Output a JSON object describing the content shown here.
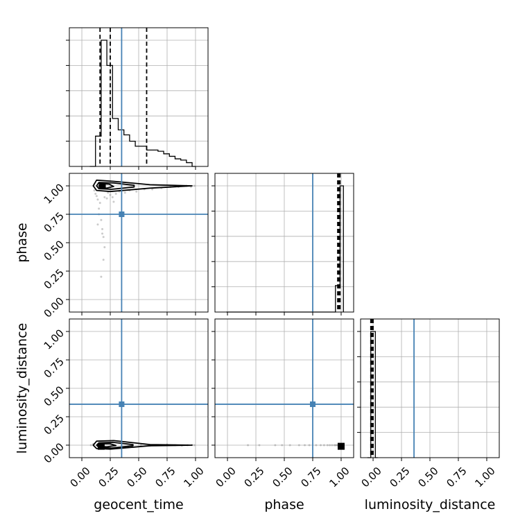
{
  "chart_data": {
    "type": "corner",
    "parameters": [
      "geocent_time",
      "phase",
      "luminosity_distance"
    ],
    "axis_labels": {
      "x": [
        "geocent_time",
        "phase",
        "luminosity_distance"
      ],
      "y": [
        "phase",
        "luminosity_distance"
      ]
    },
    "ticks": {
      "x": [
        "0.00",
        "0.25",
        "0.50",
        "0.75",
        "1.00"
      ],
      "y": [
        "0.00",
        "0.25",
        "0.50",
        "0.75",
        "1.00"
      ]
    },
    "grid": true,
    "colors": {
      "truth": "#4682b4",
      "hist": "#000000",
      "quantile": "#000000",
      "sample": "#8c8c8c"
    },
    "truths": {
      "geocent_time": 0.35,
      "phase": 0.75,
      "luminosity_distance": 0.36
    },
    "panels": [
      {
        "kind": "hist1d",
        "row": 0,
        "col": 0,
        "param": "geocent_time",
        "xlim": [
          -0.11,
          1.11
        ],
        "bin_edges": [
          0.07,
          0.12,
          0.17,
          0.22,
          0.27,
          0.32,
          0.37,
          0.42,
          0.47,
          0.52,
          0.57,
          0.62,
          0.67,
          0.72,
          0.77,
          0.82,
          0.87,
          0.92,
          0.97,
          1.0
        ],
        "counts": [
          0.0,
          0.24,
          1.0,
          0.8,
          0.38,
          0.29,
          0.25,
          0.2,
          0.16,
          0.16,
          0.13,
          0.13,
          0.12,
          0.1,
          0.08,
          0.06,
          0.05,
          0.03,
          0.0
        ],
        "quantiles": [
          0.16,
          0.25,
          0.57
        ],
        "truth": 0.35
      },
      {
        "kind": "hist1d",
        "row": 1,
        "col": 1,
        "param": "phase",
        "xlim": [
          -0.11,
          1.11
        ],
        "bin_edges": [
          -0.01,
          0.95,
          0.97,
          0.99,
          1.02
        ],
        "counts": [
          0.0,
          0.21,
          0.21,
          1.0
        ],
        "quantiles": [
          0.97,
          0.98,
          0.99
        ],
        "truth": 0.75
      },
      {
        "kind": "hist1d",
        "row": 2,
        "col": 2,
        "param": "luminosity_distance",
        "xlim": [
          -0.11,
          1.11
        ],
        "bin_edges": [
          -0.05,
          -0.02,
          0.02,
          0.04
        ],
        "counts": [
          0.0,
          1.0,
          0.0
        ],
        "quantiles": [
          -0.02,
          -0.01,
          0.0
        ],
        "truth": 0.36
      },
      {
        "kind": "hist2d",
        "row": 1,
        "col": 0,
        "xparam": "geocent_time",
        "yparam": "phase",
        "xlim": [
          -0.11,
          1.11
        ],
        "ylim": [
          -0.11,
          1.11
        ],
        "truth": [
          0.35,
          0.75
        ],
        "mode": [
          0.18,
          1.0
        ],
        "contours": [
          [
            [
              0.1,
              1.0
            ],
            [
              0.13,
              0.96
            ],
            [
              0.25,
              0.95
            ],
            [
              0.6,
              0.98
            ],
            [
              0.97,
              1.0
            ],
            [
              0.6,
              1.01
            ],
            [
              0.28,
              1.04
            ],
            [
              0.13,
              1.05
            ]
          ],
          [
            [
              0.13,
              1.0
            ],
            [
              0.15,
              0.975
            ],
            [
              0.26,
              0.97
            ],
            [
              0.46,
              0.99
            ],
            [
              0.46,
              1.005
            ],
            [
              0.28,
              1.025
            ],
            [
              0.15,
              1.03
            ]
          ],
          [
            [
              0.15,
              1.0
            ],
            [
              0.16,
              0.985
            ],
            [
              0.22,
              0.98
            ],
            [
              0.28,
              0.995
            ],
            [
              0.24,
              1.015
            ],
            [
              0.17,
              1.02
            ]
          ]
        ],
        "samples": [
          [
            0.12,
            0.93
          ],
          [
            0.14,
            0.88
          ],
          [
            0.16,
            0.85
          ],
          [
            0.15,
            0.8
          ],
          [
            0.17,
            0.7
          ],
          [
            0.18,
            0.62
          ],
          [
            0.19,
            0.55
          ],
          [
            0.2,
            0.46
          ],
          [
            0.19,
            0.35
          ],
          [
            0.17,
            0.2
          ],
          [
            0.13,
            0.91
          ],
          [
            0.22,
            0.89
          ],
          [
            0.25,
            0.92
          ],
          [
            0.28,
            0.86
          ],
          [
            0.11,
            0.96
          ],
          [
            0.3,
            0.93
          ],
          [
            0.33,
            0.95
          ],
          [
            0.38,
            0.94
          ],
          [
            0.42,
            0.96
          ],
          [
            0.48,
            0.95
          ],
          [
            0.55,
            0.97
          ],
          [
            0.62,
            0.97
          ],
          [
            0.7,
            0.98
          ],
          [
            0.78,
            0.99
          ],
          [
            0.85,
            0.99
          ],
          [
            0.92,
            1.0
          ],
          [
            0.96,
            0.99
          ],
          [
            0.99,
            1.0
          ],
          [
            0.2,
            0.9
          ],
          [
            0.15,
            0.75
          ],
          [
            0.18,
            0.58
          ],
          [
            0.14,
            0.66
          ],
          [
            0.23,
            0.94
          ],
          [
            0.27,
            0.9
          ]
        ]
      },
      {
        "kind": "hist2d",
        "row": 2,
        "col": 0,
        "xparam": "geocent_time",
        "yparam": "luminosity_distance",
        "xlim": [
          -0.11,
          1.11
        ],
        "ylim": [
          -0.11,
          1.11
        ],
        "truth": [
          0.35,
          0.36
        ],
        "mode": [
          0.17,
          -0.01
        ],
        "contours": [
          [
            [
              0.1,
              0.0
            ],
            [
              0.13,
              -0.03
            ],
            [
              0.25,
              -0.035
            ],
            [
              0.6,
              -0.005
            ],
            [
              0.97,
              0.0
            ],
            [
              0.6,
              0.005
            ],
            [
              0.28,
              0.04
            ],
            [
              0.13,
              0.035
            ]
          ],
          [
            [
              0.13,
              0.0
            ],
            [
              0.15,
              -0.02
            ],
            [
              0.26,
              -0.025
            ],
            [
              0.45,
              -0.005
            ],
            [
              0.45,
              0.005
            ],
            [
              0.27,
              0.025
            ],
            [
              0.15,
              0.02
            ]
          ],
          [
            [
              0.15,
              0.0
            ],
            [
              0.16,
              -0.012
            ],
            [
              0.22,
              -0.015
            ],
            [
              0.3,
              -0.003
            ],
            [
              0.25,
              0.012
            ],
            [
              0.17,
              0.012
            ]
          ]
        ],
        "samples": [
          [
            0.08,
            0.0
          ],
          [
            0.1,
            0.01
          ],
          [
            0.52,
            0.0
          ],
          [
            0.6,
            -0.005
          ],
          [
            0.68,
            0.0
          ],
          [
            0.75,
            0.005
          ],
          [
            0.82,
            0.0
          ],
          [
            0.88,
            -0.003
          ],
          [
            0.93,
            0.0
          ],
          [
            0.97,
            0.002
          ],
          [
            0.99,
            0.0
          ]
        ]
      },
      {
        "kind": "hist2d",
        "row": 2,
        "col": 1,
        "xparam": "phase",
        "yparam": "luminosity_distance",
        "xlim": [
          -0.11,
          1.11
        ],
        "ylim": [
          -0.11,
          1.11
        ],
        "truth": [
          0.75,
          0.36
        ],
        "mode": [
          1.0,
          -0.01
        ],
        "contours": [],
        "samples": [
          [
            0.18,
            0.0
          ],
          [
            0.28,
            0.0
          ],
          [
            0.42,
            0.0
          ],
          [
            0.48,
            0.0
          ],
          [
            0.55,
            0.0
          ],
          [
            0.63,
            0.0
          ],
          [
            0.68,
            0.0
          ],
          [
            0.72,
            0.0
          ],
          [
            0.78,
            0.0
          ],
          [
            0.82,
            0.0
          ],
          [
            0.85,
            0.0
          ],
          [
            0.88,
            0.0
          ],
          [
            0.9,
            0.0
          ],
          [
            0.92,
            0.0
          ],
          [
            0.94,
            0.0
          ],
          [
            0.95,
            0.0
          ],
          [
            0.96,
            0.0
          ],
          [
            0.97,
            0.0
          ]
        ]
      }
    ]
  }
}
